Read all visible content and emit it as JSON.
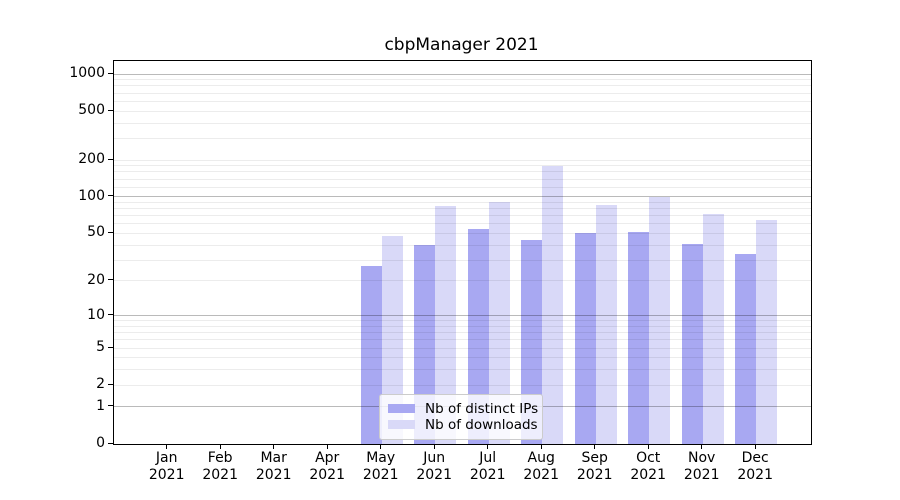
{
  "chart_data": {
    "type": "bar",
    "title": "cbpManager 2021",
    "categories": [
      "Jan 2021",
      "Feb 2021",
      "Mar 2021",
      "Apr 2021",
      "May 2021",
      "Jun 2021",
      "Jul 2021",
      "Aug 2021",
      "Sep 2021",
      "Oct 2021",
      "Nov 2021",
      "Dec 2021"
    ],
    "series": [
      {
        "name": "Nb of distinct IPs",
        "color": "#a8a8f2",
        "values": [
          0,
          0,
          0,
          0,
          27,
          40,
          54,
          44,
          50,
          51,
          41,
          34
        ]
      },
      {
        "name": "Nb of downloads",
        "color": "#d9d9f8",
        "values": [
          0,
          0,
          0,
          0,
          48,
          84,
          90,
          180,
          85,
          100,
          72,
          64
        ]
      }
    ],
    "xlabel": "",
    "ylabel": "",
    "yscale": "log1p",
    "ylim": [
      0,
      1288
    ],
    "ytick_values": [
      0,
      1,
      2,
      5,
      10,
      20,
      50,
      100,
      200,
      500,
      1000
    ],
    "ytick_labels": [
      "0",
      "1",
      "2",
      "5",
      "10",
      "20",
      "50",
      "100",
      "200",
      "500",
      "1000"
    ],
    "major_gridlines": [
      1,
      10,
      100,
      1000
    ],
    "minor_gridlines": [
      2,
      3,
      4,
      5,
      6,
      7,
      8,
      9,
      20,
      30,
      40,
      50,
      60,
      70,
      80,
      90,
      120,
      140,
      160,
      180,
      200,
      300,
      400,
      500,
      600,
      700,
      800,
      900
    ],
    "grid": true,
    "legend": {
      "position": "lower-center"
    },
    "colors": {
      "axis": "#000000",
      "major_grid": "rgba(0,0,0,0.27)",
      "minor_grid": "rgba(0,0,0,0.075)",
      "background": "#ffffff"
    }
  }
}
